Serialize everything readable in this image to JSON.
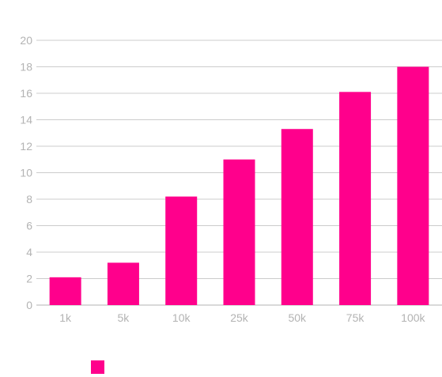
{
  "chart_data": {
    "type": "bar",
    "categories": [
      "1k",
      "5k",
      "10k",
      "25k",
      "50k",
      "75k",
      "100k"
    ],
    "series": [
      {
        "values": [
          2.1,
          3.2,
          8.2,
          11.0,
          13.3,
          16.1,
          18.0
        ]
      }
    ],
    "title": "",
    "xlabel": "",
    "ylabel": "",
    "ylim": [
      0,
      20
    ],
    "yticks": [
      "0",
      "2",
      "4",
      "6",
      "8",
      "10",
      "12",
      "14",
      "16",
      "18",
      "20"
    ],
    "grid": true,
    "legend": "bottom-left",
    "colors": {
      "bar": "#ff008c",
      "grid": "#cccccc",
      "axis": "#b3b3b3",
      "tick_text": "#b3b3b3"
    }
  }
}
